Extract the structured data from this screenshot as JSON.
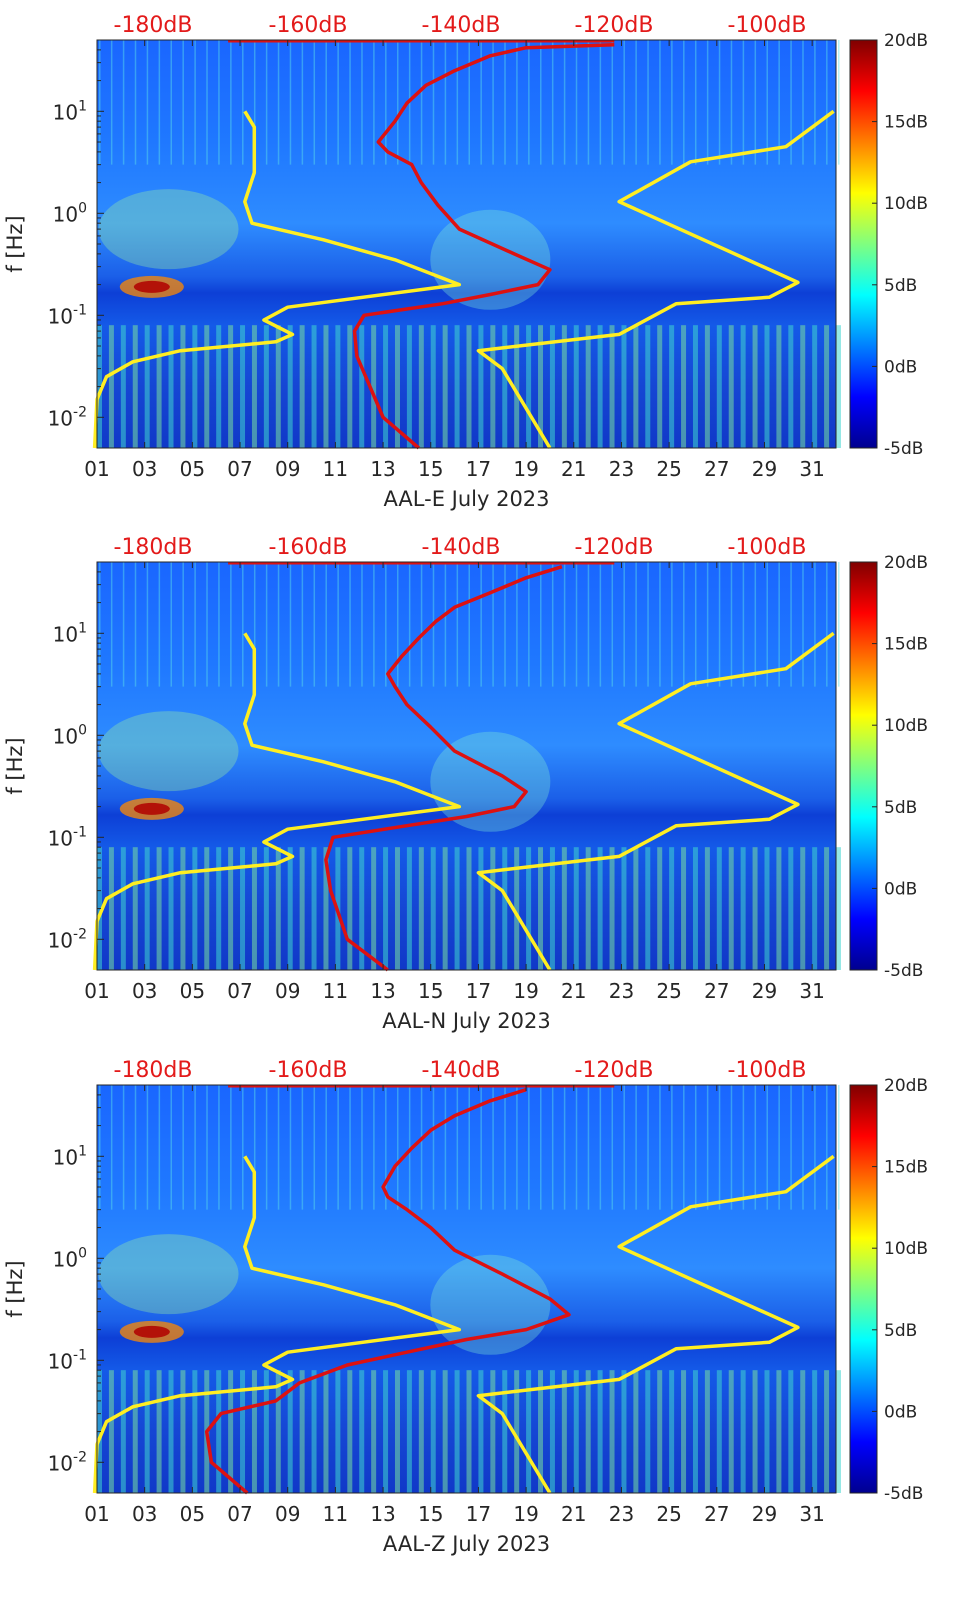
{
  "chart_data": [
    {
      "type": "heatmap",
      "xlabel": "AAL-E July 2023",
      "ylabel": "f [Hz]",
      "x_ticks": [
        "01",
        "03",
        "05",
        "07",
        "09",
        "11",
        "13",
        "15",
        "17",
        "19",
        "21",
        "23",
        "25",
        "27",
        "29",
        "31"
      ],
      "y_ticks": [
        "10-2",
        "10-1",
        "100",
        "101"
      ],
      "top_scale_labels": [
        "-180dB",
        "-160dB",
        "-140dB",
        "-120dB",
        "-100dB"
      ],
      "colorbar": {
        "labels": [
          "20dB",
          "15dB",
          "10dB",
          "5dB",
          "0dB",
          "-5dB"
        ],
        "range_db": [
          -5,
          20
        ]
      },
      "x_range_days": [
        1,
        32
      ],
      "y_range_hz": [
        0.005,
        50
      ],
      "y_scale": "log",
      "series": [
        {
          "color": "#ffee22",
          "x_day": [
            0.9,
            1.0,
            1.4,
            2.5,
            4.5,
            8.5,
            9.2,
            8.0,
            9.0,
            16.2,
            13.5,
            10.5,
            7.5,
            7.2,
            7.6,
            7.6,
            7.2
          ],
          "y_hz": [
            0.005,
            0.015,
            0.025,
            0.035,
            0.045,
            0.055,
            0.065,
            0.09,
            0.12,
            0.2,
            0.35,
            0.55,
            0.8,
            1.3,
            2.5,
            7.0,
            10.0
          ]
        },
        {
          "color": "#ffee22",
          "x_day": [
            20.0,
            18.0,
            17.0,
            22.9,
            25.3,
            29.2,
            30.4,
            22.9,
            25.9,
            29.9,
            31.9
          ],
          "y_hz": [
            0.005,
            0.03,
            0.045,
            0.065,
            0.13,
            0.15,
            0.21,
            1.3,
            3.2,
            4.5,
            10.0
          ]
        },
        {
          "color": "#dd1111",
          "x_day": [
            14.5,
            13.0,
            11.9,
            11.8,
            12.2,
            15.5,
            17.5,
            19.5,
            20.0,
            18.5,
            16.2,
            15.3,
            14.6,
            14.2,
            13.2,
            12.8,
            13.5,
            14.0,
            14.8,
            16.0,
            17.5,
            19.0,
            22.7
          ],
          "y_hz": [
            0.005,
            0.01,
            0.04,
            0.07,
            0.1,
            0.13,
            0.16,
            0.2,
            0.28,
            0.4,
            0.7,
            1.2,
            2.0,
            3.0,
            4.0,
            5.0,
            8.0,
            12.0,
            18.0,
            25.0,
            35.0,
            42.0,
            45.0
          ]
        }
      ]
    },
    {
      "type": "heatmap",
      "xlabel": "AAL-N July 2023",
      "ylabel": "f [Hz]",
      "x_ticks": [
        "01",
        "03",
        "05",
        "07",
        "09",
        "11",
        "13",
        "15",
        "17",
        "19",
        "21",
        "23",
        "25",
        "27",
        "29",
        "31"
      ],
      "y_ticks": [
        "10-2",
        "10-1",
        "100",
        "101"
      ],
      "top_scale_labels": [
        "-180dB",
        "-160dB",
        "-140dB",
        "-120dB",
        "-100dB"
      ],
      "colorbar": {
        "labels": [
          "20dB",
          "15dB",
          "10dB",
          "5dB",
          "0dB",
          "-5dB"
        ],
        "range_db": [
          -5,
          20
        ]
      },
      "x_range_days": [
        1,
        32
      ],
      "y_range_hz": [
        0.005,
        50
      ],
      "y_scale": "log",
      "series": [
        {
          "color": "#ffee22",
          "x_day": [
            0.9,
            1.0,
            1.4,
            2.5,
            4.5,
            8.5,
            9.2,
            8.0,
            9.0,
            16.2,
            13.5,
            10.5,
            7.5,
            7.2,
            7.6,
            7.6,
            7.2
          ],
          "y_hz": [
            0.005,
            0.015,
            0.025,
            0.035,
            0.045,
            0.055,
            0.065,
            0.09,
            0.12,
            0.2,
            0.35,
            0.55,
            0.8,
            1.3,
            2.5,
            7.0,
            10.0
          ]
        },
        {
          "color": "#ffee22",
          "x_day": [
            20.0,
            18.0,
            17.0,
            22.9,
            25.3,
            29.2,
            30.4,
            22.9,
            25.9,
            29.9,
            31.9
          ],
          "y_hz": [
            0.005,
            0.03,
            0.045,
            0.065,
            0.13,
            0.15,
            0.21,
            1.3,
            3.2,
            4.5,
            10.0
          ]
        },
        {
          "color": "#dd1111",
          "x_day": [
            13.2,
            11.5,
            10.8,
            10.6,
            10.9,
            14.0,
            16.5,
            18.5,
            19.0,
            18.0,
            16.0,
            15.0,
            14.0,
            13.5,
            13.2,
            13.8,
            14.5,
            15.2,
            16.0,
            17.5,
            19.0,
            20.5
          ],
          "y_hz": [
            0.005,
            0.01,
            0.03,
            0.06,
            0.1,
            0.13,
            0.16,
            0.2,
            0.28,
            0.4,
            0.7,
            1.2,
            2.0,
            3.0,
            4.0,
            6.0,
            9.0,
            13.0,
            18.0,
            25.0,
            35.0,
            45.0
          ]
        }
      ]
    },
    {
      "type": "heatmap",
      "xlabel": "AAL-Z July 2023",
      "ylabel": "f [Hz]",
      "x_ticks": [
        "01",
        "03",
        "05",
        "07",
        "09",
        "11",
        "13",
        "15",
        "17",
        "19",
        "21",
        "23",
        "25",
        "27",
        "29",
        "31"
      ],
      "y_ticks": [
        "10-2",
        "10-1",
        "100",
        "101"
      ],
      "top_scale_labels": [
        "-180dB",
        "-160dB",
        "-140dB",
        "-120dB",
        "-100dB"
      ],
      "colorbar": {
        "labels": [
          "20dB",
          "15dB",
          "10dB",
          "5dB",
          "0dB",
          "-5dB"
        ],
        "range_db": [
          -5,
          20
        ]
      },
      "x_range_days": [
        1,
        32
      ],
      "y_range_hz": [
        0.005,
        50
      ],
      "y_scale": "log",
      "series": [
        {
          "color": "#ffee22",
          "x_day": [
            0.9,
            1.0,
            1.4,
            2.5,
            4.5,
            8.5,
            9.2,
            8.0,
            9.0,
            16.2,
            13.5,
            10.5,
            7.5,
            7.2,
            7.6,
            7.6,
            7.2
          ],
          "y_hz": [
            0.005,
            0.015,
            0.025,
            0.035,
            0.045,
            0.055,
            0.065,
            0.09,
            0.12,
            0.2,
            0.35,
            0.55,
            0.8,
            1.3,
            2.5,
            7.0,
            10.0
          ]
        },
        {
          "color": "#ffee22",
          "x_day": [
            20.0,
            18.0,
            17.0,
            22.9,
            25.3,
            29.2,
            30.4,
            22.9,
            25.9,
            29.9,
            31.9
          ],
          "y_hz": [
            0.005,
            0.03,
            0.045,
            0.065,
            0.13,
            0.15,
            0.21,
            1.3,
            3.2,
            4.5,
            10.0
          ]
        },
        {
          "color": "#dd1111",
          "x_day": [
            7.3,
            5.8,
            5.6,
            6.2,
            8.5,
            9.5,
            11.5,
            14.0,
            16.5,
            19.0,
            20.8,
            20.0,
            18.0,
            16.0,
            15.0,
            14.0,
            13.2,
            13.0,
            13.5,
            14.2,
            15.0,
            16.0,
            17.5,
            19.0
          ],
          "y_hz": [
            0.005,
            0.01,
            0.02,
            0.03,
            0.04,
            0.06,
            0.09,
            0.12,
            0.16,
            0.2,
            0.28,
            0.4,
            0.7,
            1.2,
            2.0,
            3.0,
            4.0,
            5.0,
            8.0,
            12.0,
            18.0,
            25.0,
            35.0,
            45.0
          ]
        }
      ]
    }
  ]
}
